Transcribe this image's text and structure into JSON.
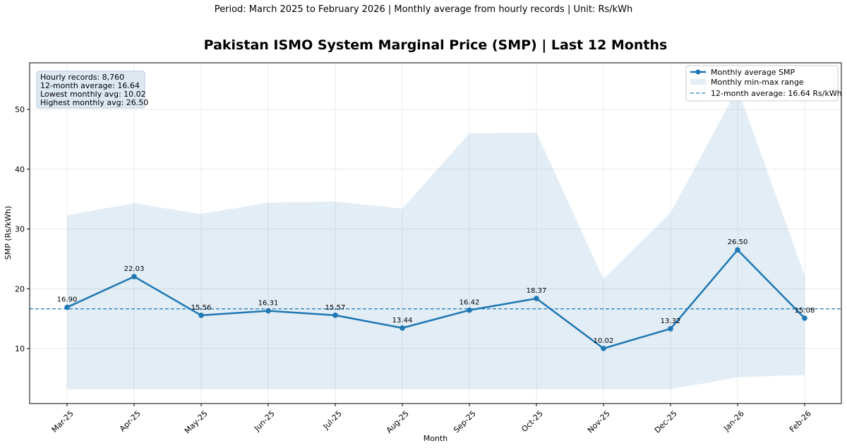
{
  "supertitle": "Period: March 2025 to February 2026 | Monthly average from hourly records | Unit: Rs/kWh",
  "chart_data": {
    "type": "line",
    "title": "Pakistan ISMO System Marginal Price (SMP) | Last 12 Months",
    "xlabel": "Month",
    "ylabel": "SMP (Rs/kWh)",
    "ylim": [
      0.8,
      57.8
    ],
    "yticks": [
      10,
      20,
      30,
      40,
      50
    ],
    "grid": true,
    "legend_position": "top-right",
    "categories": [
      "Mar-25",
      "Apr-25",
      "May-25",
      "Jun-25",
      "Jul-25",
      "Aug-25",
      "Sep-25",
      "Oct-25",
      "Nov-25",
      "Dec-25",
      "Jan-26",
      "Feb-26"
    ],
    "series": [
      {
        "name": "Monthly average SMP",
        "values": [
          16.9,
          22.03,
          15.56,
          16.31,
          15.57,
          13.44,
          16.42,
          18.37,
          10.02,
          13.32,
          26.5,
          15.08
        ],
        "labels": [
          "16.90",
          "22.03",
          "15.56",
          "16.31",
          "15.57",
          "13.44",
          "16.42",
          "18.37",
          "10.02",
          "13.32",
          "26.50",
          "15.08"
        ],
        "color": "#1f77b4"
      }
    ],
    "range": {
      "name": "Monthly min-max range",
      "min": [
        3.2,
        3.2,
        3.2,
        3.2,
        3.2,
        3.2,
        3.2,
        3.2,
        3.2,
        3.2,
        5.2,
        5.6
      ],
      "max": [
        32.3,
        34.3,
        32.5,
        34.4,
        34.6,
        33.4,
        46.0,
        46.1,
        21.6,
        32.7,
        53.5,
        22.2
      ],
      "color": "#1f77b4"
    },
    "average_line": {
      "name": "12-month average: 16.64 Rs/kWh",
      "value": 16.64,
      "color": "#1f77b4"
    },
    "stats": [
      "Hourly records: 8,760",
      "12-month average: 16.64",
      "Lowest monthly avg: 10.02",
      "Highest monthly avg: 26.50"
    ]
  }
}
